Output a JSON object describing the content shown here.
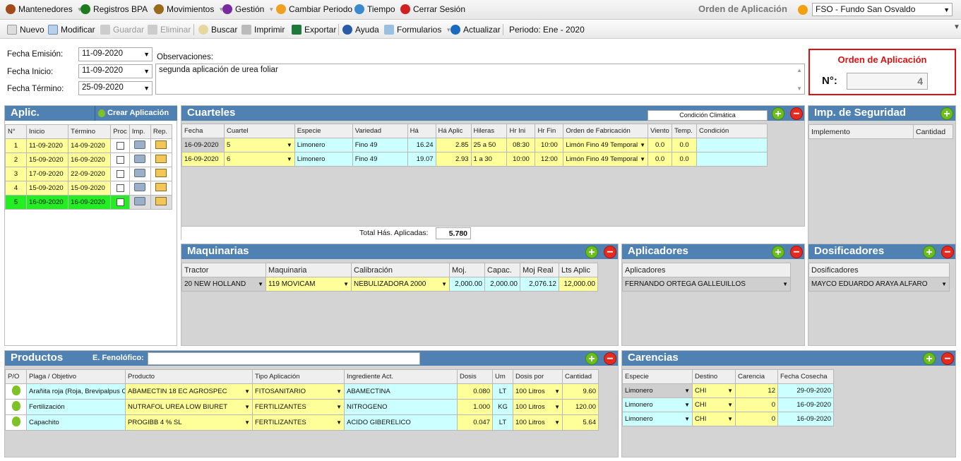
{
  "menu": {
    "items": [
      {
        "label": "Mantenedores",
        "color": "#a24a1a",
        "caret": true
      },
      {
        "label": "Registros BPA",
        "color": "#1e7a1e",
        "caret": true
      },
      {
        "label": "Movimientos",
        "color": "#9a6a1a",
        "caret": true
      },
      {
        "label": "Gestión",
        "color": "#7a2aa0",
        "caret": true
      },
      {
        "label": "Cambiar Periodo",
        "color": "#f0a020",
        "caret": false
      },
      {
        "label": "Tiempo",
        "color": "#3a8ad0",
        "caret": false
      },
      {
        "label": "Cerrar Sesión",
        "color": "#d02020",
        "caret": false
      }
    ],
    "screen_title": "Orden de Aplicación",
    "fundo_select": "FSO - Fundo San Osvaldo"
  },
  "toolbar": {
    "nuevo": "Nuevo",
    "modificar": "Modificar",
    "guardar": "Guardar",
    "eliminar": "Eliminar",
    "buscar": "Buscar",
    "imprimir": "Imprimir",
    "exportar": "Exportar",
    "ayuda": "Ayuda",
    "formularios": "Formularios",
    "actualizar": "Actualizar",
    "periodo": "Periodo: Ene - 2020"
  },
  "form": {
    "fecha_emision_label": "Fecha Emisión:",
    "fecha_emision": "11-09-2020",
    "fecha_inicio_label": "Fecha Inicio:",
    "fecha_inicio": "11-09-2020",
    "fecha_termino_label": "Fecha Término:",
    "fecha_termino": "25-09-2020",
    "observaciones_label": "Observaciones:",
    "observaciones": "segunda aplicación de urea foliar"
  },
  "orden": {
    "title": "Orden de Aplicación",
    "numero_label": "N°:",
    "numero": "4"
  },
  "aplic": {
    "title": "Aplic.",
    "crear": "Crear Aplicación",
    "headers": [
      "N°",
      "Inicio",
      "Término",
      "Proc",
      "Imp.",
      "Rep."
    ],
    "rows": [
      {
        "n": "1",
        "inicio": "11-09-2020",
        "termino": "14-09-2020"
      },
      {
        "n": "2",
        "inicio": "15-09-2020",
        "termino": "16-09-2020"
      },
      {
        "n": "3",
        "inicio": "17-09-2020",
        "termino": "22-09-2020"
      },
      {
        "n": "4",
        "inicio": "15-09-2020",
        "termino": "15-09-2020"
      },
      {
        "n": "5",
        "inicio": "16-09-2020",
        "termino": "16-09-2020"
      }
    ]
  },
  "cuarteles": {
    "title": "Cuarteles",
    "condicion_climatica": "Condición Climática",
    "headers": [
      "Fecha",
      "Cuartel",
      "Especie",
      "Variedad",
      "Há",
      "Há Aplic",
      "Hileras",
      "Hr Ini",
      "Hr Fin",
      "Orden de Fabricación",
      "Viento",
      "Temp.",
      "Condición"
    ],
    "rows": [
      {
        "fecha": "16-09-2020",
        "cuartel": "5",
        "especie": "Limonero",
        "variedad": "Fino 49",
        "ha": "16.24",
        "ha_aplic": "2.85",
        "hileras": "25 a 50",
        "hr_ini": "08:30",
        "hr_fin": "10:00",
        "orden": "Limón Fino 49 Temporal",
        "viento": "0.0",
        "temp": "0.0",
        "condicion": ""
      },
      {
        "fecha": "16-09-2020",
        "cuartel": "6",
        "especie": "Limonero",
        "variedad": "Fino 49",
        "ha": "19.07",
        "ha_aplic": "2.93",
        "hileras": "1 a 30",
        "hr_ini": "10:00",
        "hr_fin": "12:00",
        "orden": "Limón Fino 49 Temporal",
        "viento": "0.0",
        "temp": "0.0",
        "condicion": ""
      }
    ],
    "total_label": "Total Hás. Aplicadas:",
    "total": "5.780"
  },
  "imp_seguridad": {
    "title": "Imp. de Seguridad",
    "headers": [
      "Implemento",
      "Cantidad"
    ]
  },
  "maquinarias": {
    "title": "Maquinarias",
    "headers": [
      "Tractor",
      "Maquinaria",
      "Calibración",
      "Moj.",
      "Capac.",
      "Moj Real",
      "Lts Aplic"
    ],
    "row": {
      "tractor": "20 NEW HOLLAND",
      "maquinaria": "119 MOVICAM",
      "calibracion": "NEBULIZADORA 2000",
      "moj": "2,000.00",
      "capac": "2,000.00",
      "moj_real": "2,076.12",
      "lts_aplic": "12,000.00"
    }
  },
  "aplicadores": {
    "title": "Aplicadores",
    "header": "Aplicadores",
    "value": "FERNANDO ORTEGA GALLEUILLOS"
  },
  "dosificadores": {
    "title": "Dosificadores",
    "header": "Dosificadores",
    "value": "MAYCO EDUARDO ARAYA ALFARO"
  },
  "productos": {
    "title": "Productos",
    "fenologico_label": "E. Fenolófico:",
    "fenologico": "",
    "headers": [
      "P/O",
      "Plaga / Objetivo",
      "Producto",
      "Tipo Aplicación",
      "Ingrediente Act.",
      "Dosis",
      "Um",
      "Dosis por",
      "Cantidad"
    ],
    "rows": [
      {
        "plaga": "Arañita roja (Roja, Brevipalpus Ch",
        "producto": "ABAMECTIN 18 EC AGROSPEC",
        "tipo": "FITOSANITARIO",
        "ingrediente": "ABAMECTINA",
        "dosis": "0.080",
        "um": "LT",
        "dosis_por": "100 Litros",
        "cantidad": "9.60"
      },
      {
        "plaga": "Fertilización",
        "producto": "NUTRAFOL UREA LOW BIURET",
        "tipo": "FERTILIZANTES",
        "ingrediente": "NITROGENO",
        "dosis": "1.000",
        "um": "KG",
        "dosis_por": "100 Litros",
        "cantidad": "120.00"
      },
      {
        "plaga": "Capachito",
        "producto": "PROGIBB 4 % SL",
        "tipo": "FERTILIZANTES",
        "ingrediente": "ACIDO GIBERELICO",
        "dosis": "0.047",
        "um": "LT",
        "dosis_por": "100 Litros",
        "cantidad": "5.64"
      }
    ]
  },
  "carencias": {
    "title": "Carencias",
    "headers": [
      "Especie",
      "Destino",
      "Carencia",
      "Fecha Cosecha"
    ],
    "rows": [
      {
        "especie": "Limonero",
        "destino": "CHI",
        "carencia": "12",
        "fecha": "29-09-2020"
      },
      {
        "especie": "Limonero",
        "destino": "CHI",
        "carencia": "0",
        "fecha": "16-09-2020"
      },
      {
        "especie": "Limonero",
        "destino": "CHI",
        "carencia": "0",
        "fecha": "16-09-2020"
      }
    ]
  }
}
